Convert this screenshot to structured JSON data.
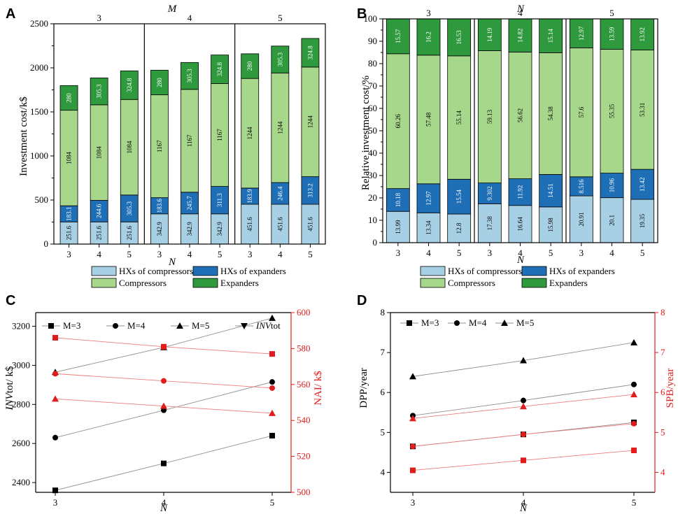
{
  "panel_letters": {
    "a": "A",
    "b": "B",
    "c": "C",
    "d": "D"
  },
  "colors": {
    "hx_comp": "#a8d0e4",
    "hx_exp": "#1f6fb7",
    "comp": "#a6d78b",
    "exp": "#2f9a3d",
    "black": "#000000",
    "red": "#e11c1c",
    "grey_line": "#8f8f8f",
    "pink_line": "#ef7c7c"
  },
  "legend_ab": {
    "hx_comp": "HXs of compressors",
    "hx_exp": "HXs of expanders",
    "comp": "Compressors",
    "exp": "Expanders"
  },
  "chart_data": [
    {
      "id": "A",
      "type": "bar",
      "stacked": true,
      "top_title": "M",
      "group_labels": [
        "3",
        "4",
        "5"
      ],
      "categories": [
        "3",
        "4",
        "5",
        "3",
        "4",
        "5",
        "3",
        "4",
        "5"
      ],
      "xlabel": "N",
      "ylabel": "Investment cost/k$",
      "ylim": [
        0,
        2500
      ],
      "yticks": [
        0,
        500,
        1000,
        1500,
        2000,
        2500
      ],
      "series": [
        {
          "key": "hx_comp",
          "name": "HXs of compressors",
          "values": [
            251.6,
            251.6,
            251.6,
            342.9,
            342.9,
            342.9,
            451.6,
            451.6,
            451.6
          ],
          "labels": [
            "251.6",
            "251.6",
            "251.6",
            "342.9",
            "342.9",
            "342.9",
            "451.6",
            "451.6",
            "451.6"
          ]
        },
        {
          "key": "hx_exp",
          "name": "HXs of expanders",
          "values": [
            183.1,
            244.6,
            305.3,
            183.6,
            245.7,
            311.3,
            183.9,
            246.4,
            313.2
          ],
          "labels": [
            "183.1",
            "244.6",
            "305.3",
            "183.6",
            "245.7",
            "311.3",
            "183.9",
            "246.4",
            "313.2"
          ]
        },
        {
          "key": "comp",
          "name": "Compressors",
          "values": [
            1084,
            1084,
            1084,
            1167,
            1167,
            1167,
            1244,
            1244,
            1244
          ],
          "labels": [
            "1084",
            "1084",
            "1084",
            "1167",
            "1167",
            "1167",
            "1244",
            "1244",
            "1244"
          ]
        },
        {
          "key": "exp",
          "name": "Expanders",
          "values": [
            280,
            305.3,
            324.8,
            280,
            305.3,
            324.8,
            280,
            305.3,
            324.8
          ],
          "labels": [
            "280",
            "305.3",
            "324.8",
            "280",
            "305.3",
            "324.8",
            "280",
            "305.3",
            "324.8"
          ]
        }
      ]
    },
    {
      "id": "B",
      "type": "bar",
      "stacked": true,
      "top_title": "N",
      "group_labels": [
        "3",
        "4",
        "5"
      ],
      "categories": [
        "3",
        "4",
        "5",
        "3",
        "4",
        "5",
        "3",
        "4",
        "5"
      ],
      "xlabel": "N",
      "ylabel": "Relative investment cost/%",
      "ylim": [
        0,
        100
      ],
      "yticks": [
        0,
        10,
        20,
        30,
        40,
        50,
        60,
        70,
        80,
        90,
        100
      ],
      "series": [
        {
          "key": "hx_comp",
          "name": "HXs of compressors",
          "values": [
            13.99,
            13.34,
            12.8,
            17.38,
            16.64,
            15.98,
            20.91,
            20.1,
            19.35
          ],
          "labels": [
            "13.99",
            "13.34",
            "12.8",
            "17.38",
            "16.64",
            "15.98",
            "20.91",
            "20.1",
            "19.35"
          ]
        },
        {
          "key": "hx_exp",
          "name": "HXs of expanders",
          "values": [
            10.18,
            12.97,
            15.54,
            9.302,
            11.92,
            14.51,
            8.516,
            10.96,
            13.42
          ],
          "labels": [
            "10.18",
            "12.97",
            "15.54",
            "9.302",
            "11.92",
            "14.51",
            "8.516",
            "10.96",
            "13.42"
          ]
        },
        {
          "key": "comp",
          "name": "Compressors",
          "values": [
            60.26,
            57.48,
            55.14,
            59.13,
            56.62,
            54.38,
            57.6,
            55.35,
            53.31
          ],
          "labels": [
            "60.26",
            "57.48",
            "55.14",
            "59.13",
            "56.62",
            "54.38",
            "57.6",
            "55.35",
            "53.31"
          ]
        },
        {
          "key": "exp",
          "name": "Expanders",
          "values": [
            15.57,
            16.2,
            16.53,
            14.19,
            14.82,
            15.14,
            12.97,
            13.59,
            13.92
          ],
          "labels": [
            "15.57",
            "16.2",
            "16.53",
            "14.19",
            "14.82",
            "15.14",
            "12.97",
            "13.59",
            "13.92"
          ]
        }
      ]
    },
    {
      "id": "C",
      "type": "line",
      "x": [
        3,
        4,
        5
      ],
      "xticks": [
        "3",
        "4",
        "5"
      ],
      "xlabel": "N",
      "ylabel_left": "INVtot/ k$",
      "ylabel_left_italic": "INV",
      "ylabel_left_rest": "tot/ k$",
      "ylabel_right": "NAI/ k$",
      "ylim_left": [
        2350,
        3270
      ],
      "ylim_right": [
        500,
        600
      ],
      "yticks_left": [
        2400,
        2600,
        2800,
        3000,
        3200
      ],
      "yticks_right": [
        500,
        520,
        540,
        560,
        580,
        600
      ],
      "legend": [
        {
          "marker": "square",
          "label": "M=3"
        },
        {
          "marker": "circle",
          "label": "M=4"
        },
        {
          "marker": "triangle",
          "label": "M=5"
        },
        {
          "marker": "triangle-down",
          "label": "INVtot",
          "label_italic": "INV",
          "label_rest": "tot"
        }
      ],
      "series": [
        {
          "name": "M=3",
          "axis": "left",
          "marker": "square",
          "values": [
            2360,
            2498,
            2640
          ]
        },
        {
          "name": "M=4",
          "axis": "left",
          "marker": "circle",
          "values": [
            2630,
            2770,
            2915
          ]
        },
        {
          "name": "M=5",
          "axis": "left",
          "marker": "triangle",
          "values": [
            2965,
            3092,
            3242
          ]
        },
        {
          "name": "NAI M=3",
          "axis": "right",
          "marker": "square",
          "values": [
            586,
            581,
            577
          ]
        },
        {
          "name": "NAI M=4",
          "axis": "right",
          "marker": "circle",
          "values": [
            566,
            562,
            558
          ]
        },
        {
          "name": "NAI M=5",
          "axis": "right",
          "marker": "triangle",
          "values": [
            552,
            548,
            544
          ]
        }
      ]
    },
    {
      "id": "D",
      "type": "line",
      "x": [
        3,
        4,
        5
      ],
      "xticks": [
        "3",
        "4",
        "5"
      ],
      "xlabel": "N",
      "ylabel_left": "DPP/year",
      "ylabel_right": "SPB/year",
      "ylim_left": [
        3.5,
        8
      ],
      "ylim_right": [
        3.5,
        8
      ],
      "yticks_left": [
        4,
        5,
        6,
        7,
        8
      ],
      "yticks_right": [
        4,
        5,
        6,
        7,
        8
      ],
      "legend": [
        {
          "marker": "square",
          "label": "M=3"
        },
        {
          "marker": "circle",
          "label": "M=4"
        },
        {
          "marker": "triangle",
          "label": "M=5"
        }
      ],
      "series": [
        {
          "name": "M=3",
          "axis": "left",
          "marker": "square",
          "values": [
            4.65,
            4.95,
            5.25
          ]
        },
        {
          "name": "M=4",
          "axis": "left",
          "marker": "circle",
          "values": [
            5.42,
            5.8,
            6.2
          ]
        },
        {
          "name": "M=5",
          "axis": "left",
          "marker": "triangle",
          "values": [
            6.4,
            6.8,
            7.25
          ]
        },
        {
          "name": "SPB M=3",
          "axis": "right",
          "marker": "square",
          "values": [
            4.05,
            4.3,
            4.55
          ]
        },
        {
          "name": "SPB M=4",
          "axis": "right",
          "marker": "circle",
          "values": [
            4.65,
            4.95,
            5.22
          ]
        },
        {
          "name": "SPB M=5",
          "axis": "right",
          "marker": "triangle",
          "values": [
            5.35,
            5.65,
            5.95
          ]
        }
      ]
    }
  ]
}
